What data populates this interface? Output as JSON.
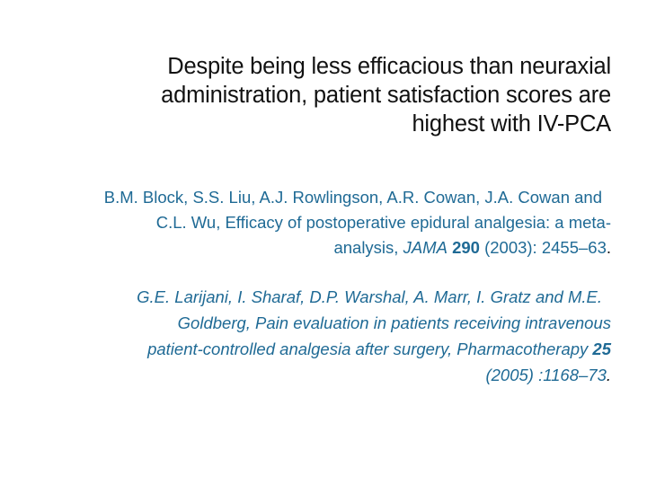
{
  "slide": {
    "title_lines": [
      "Despite being less efficacious than neuraxial",
      "administration, patient satisfaction scores are",
      "highest with IV-PCA"
    ],
    "references": [
      {
        "line1": "B.M. Block, S.S. Liu, A.J. Rowlingson, A.R. Cowan, J.A. Cowan and",
        "line2": "C.L. Wu, Efficacy of postoperative epidural analgesia: a meta-",
        "line3_prefix": "analysis, ",
        "journal": "JAMA",
        "volume": "290",
        "line3_suffix": " (2003): 2455–63",
        "end": "."
      },
      {
        "line1": "G.E. Larijani, I. Sharaf, D.P. Warshal, A. Marr, I. Gratz and M.E.",
        "line2": "Goldberg, Pain evaluation in patients receiving intravenous",
        "line3_prefix": "patient-controlled analgesia after surgery, Pharmacotherapy ",
        "volume": "25",
        "line4": "(2005) :1168–73",
        "end": "."
      }
    ],
    "colors": {
      "title_text": "#111111",
      "reference_text": "#1f6a95",
      "background": "#ffffff"
    }
  }
}
